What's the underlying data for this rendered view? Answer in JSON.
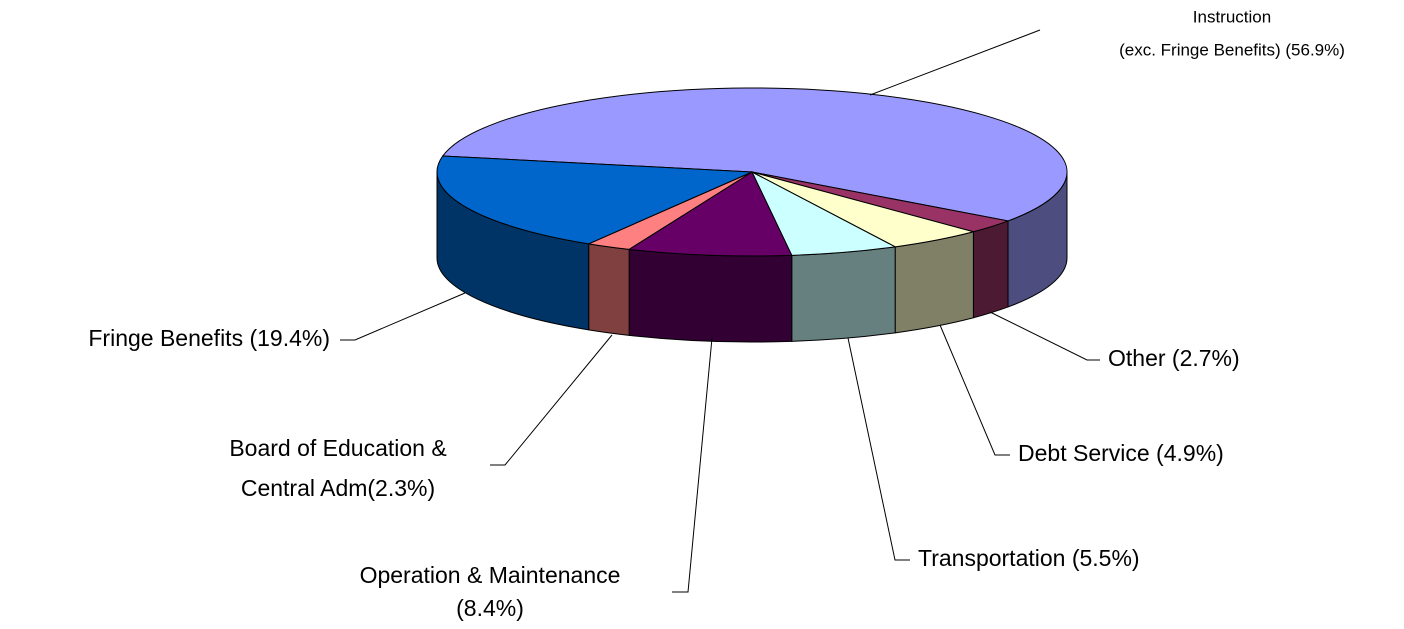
{
  "chart_data": {
    "type": "pie3d",
    "labels": [
      [
        "Instruction",
        "(exc. Fringe Benefits) (56.9%)"
      ],
      [
        "Other (2.7%)"
      ],
      [
        "Debt Service (4.9%)"
      ],
      [
        "Transportation (5.5%)"
      ],
      [
        "Operation & Maintenance",
        "(8.4%)"
      ],
      [
        "Board of Education &",
        "Central Adm(2.3%)"
      ],
      [
        "Fringe Benefits (19.4%)"
      ]
    ],
    "values": [
      56.9,
      2.7,
      4.9,
      5.5,
      8.4,
      2.3,
      19.4
    ],
    "colors": [
      "#9999ff",
      "#993366",
      "#ffffcc",
      "#ccffff",
      "#660066",
      "#ff8080",
      "#0066cc"
    ]
  }
}
